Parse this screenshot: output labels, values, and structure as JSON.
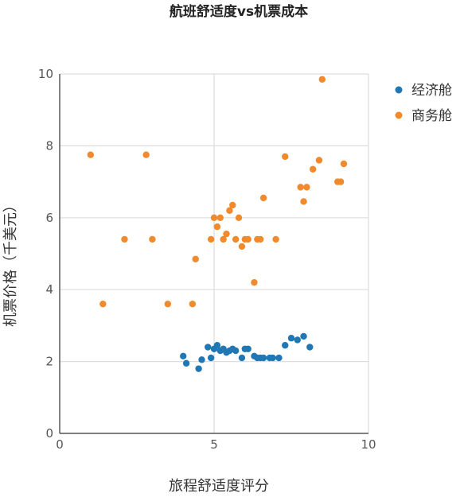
{
  "chart_data": {
    "type": "scatter",
    "title": "航班舒适度vs机票成本",
    "xlabel": "旅程舒适度评分",
    "ylabel": "机票价格（千美元）",
    "xlim": [
      0,
      10
    ],
    "ylim": [
      0,
      10
    ],
    "xticks": [
      0,
      5,
      10
    ],
    "yticks": [
      0,
      2,
      4,
      6,
      8,
      10
    ],
    "grid": true,
    "legend_position": "top-right",
    "series": [
      {
        "name": "经济舱",
        "color": "#1f77b4",
        "points": [
          [
            4.0,
            2.15
          ],
          [
            4.1,
            1.95
          ],
          [
            4.5,
            1.8
          ],
          [
            4.6,
            2.05
          ],
          [
            4.8,
            2.4
          ],
          [
            4.9,
            2.1
          ],
          [
            5.0,
            2.35
          ],
          [
            5.1,
            2.45
          ],
          [
            5.2,
            2.3
          ],
          [
            5.3,
            2.35
          ],
          [
            5.4,
            2.25
          ],
          [
            5.5,
            2.3
          ],
          [
            5.6,
            2.35
          ],
          [
            5.7,
            2.3
          ],
          [
            5.9,
            2.1
          ],
          [
            6.0,
            2.35
          ],
          [
            6.1,
            2.35
          ],
          [
            6.3,
            2.15
          ],
          [
            6.4,
            2.1
          ],
          [
            6.5,
            2.1
          ],
          [
            6.6,
            2.1
          ],
          [
            6.8,
            2.1
          ],
          [
            6.9,
            2.1
          ],
          [
            7.1,
            2.1
          ],
          [
            7.3,
            2.45
          ],
          [
            7.5,
            2.65
          ],
          [
            7.7,
            2.6
          ],
          [
            7.9,
            2.7
          ],
          [
            8.1,
            2.4
          ]
        ]
      },
      {
        "name": "商务舱",
        "color": "#f08a2c",
        "points": [
          [
            1.0,
            7.75
          ],
          [
            1.4,
            3.6
          ],
          [
            2.1,
            5.4
          ],
          [
            2.8,
            7.75
          ],
          [
            3.0,
            5.4
          ],
          [
            3.5,
            3.6
          ],
          [
            4.3,
            3.6
          ],
          [
            4.4,
            4.85
          ],
          [
            4.9,
            5.4
          ],
          [
            5.0,
            6.0
          ],
          [
            5.1,
            5.75
          ],
          [
            5.2,
            6.0
          ],
          [
            5.3,
            5.4
          ],
          [
            5.4,
            5.55
          ],
          [
            5.5,
            6.2
          ],
          [
            5.6,
            6.35
          ],
          [
            5.7,
            5.4
          ],
          [
            5.8,
            6.0
          ],
          [
            5.9,
            5.2
          ],
          [
            6.0,
            5.4
          ],
          [
            6.1,
            5.4
          ],
          [
            6.3,
            4.2
          ],
          [
            6.4,
            5.4
          ],
          [
            6.5,
            5.4
          ],
          [
            6.6,
            6.55
          ],
          [
            7.0,
            5.4
          ],
          [
            7.3,
            7.7
          ],
          [
            7.8,
            6.85
          ],
          [
            7.9,
            6.45
          ],
          [
            8.0,
            6.85
          ],
          [
            8.2,
            7.35
          ],
          [
            8.4,
            7.6
          ],
          [
            8.5,
            9.85
          ],
          [
            9.0,
            7.0
          ],
          [
            9.1,
            7.0
          ],
          [
            9.2,
            7.5
          ]
        ]
      }
    ]
  }
}
